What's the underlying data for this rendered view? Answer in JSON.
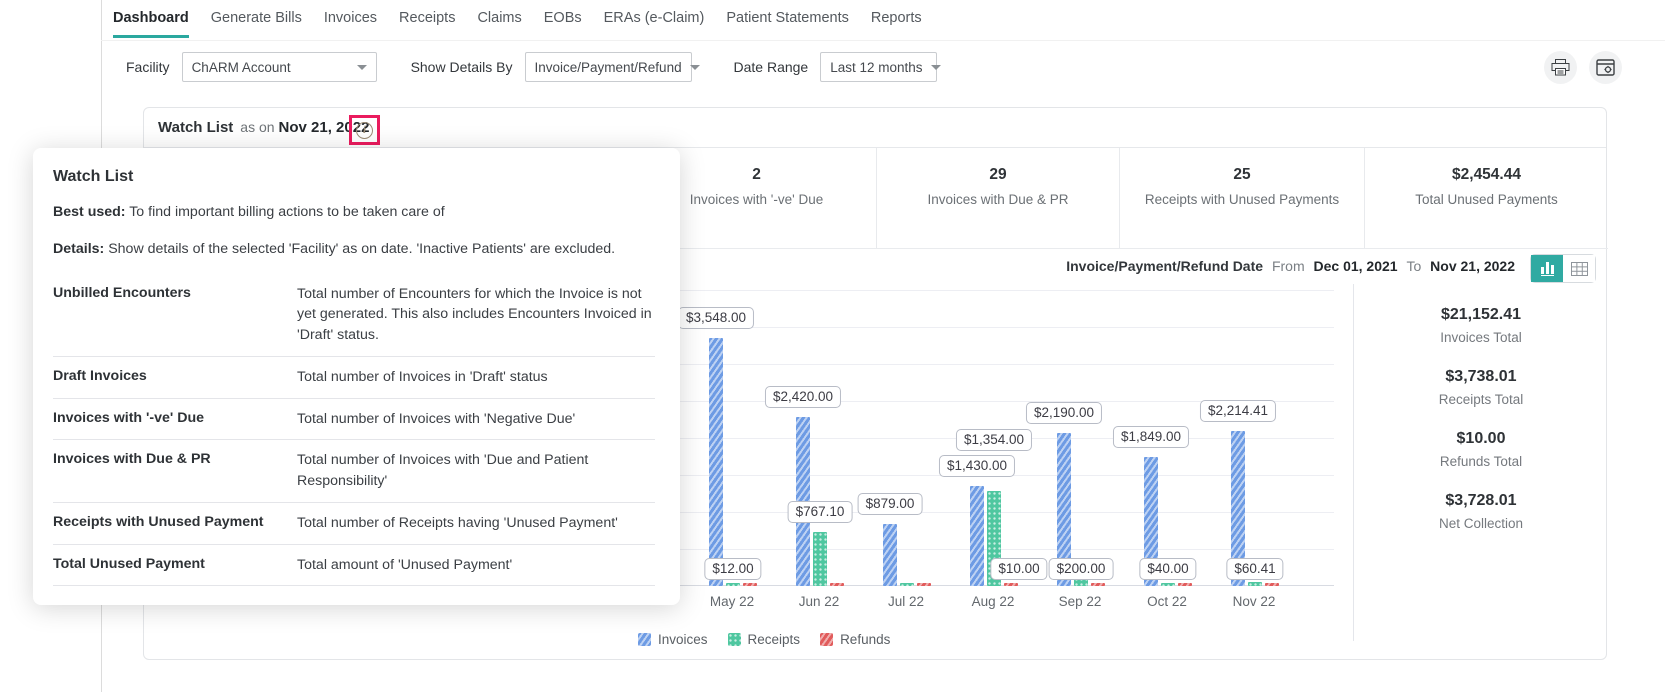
{
  "nav": {
    "tabs": [
      {
        "label": "Dashboard",
        "active": true
      },
      {
        "label": "Generate Bills",
        "active": false
      },
      {
        "label": "Invoices",
        "active": false
      },
      {
        "label": "Receipts",
        "active": false
      },
      {
        "label": "Claims",
        "active": false
      },
      {
        "label": "EOBs",
        "active": false
      },
      {
        "label": "ERAs (e-Claim)",
        "active": false
      },
      {
        "label": "Patient Statements",
        "active": false
      },
      {
        "label": "Reports",
        "active": false
      }
    ]
  },
  "filters": {
    "facility_label": "Facility",
    "facility_value": "ChARM Account",
    "show_details_label": "Show Details By",
    "show_details_value": "Invoice/Payment/Refund",
    "date_range_label": "Date Range",
    "date_range_value": "Last 12 months"
  },
  "icons": {
    "print": "print-icon",
    "widget_settings": "widget-settings-icon",
    "info": "info-icon",
    "chart_view": "bar-chart-icon",
    "table_view": "table-grid-icon"
  },
  "watch_list": {
    "title": "Watch List",
    "as_on_label": "as on",
    "as_on_date": "Nov 21, 2022",
    "stats": [
      {
        "value": "2",
        "label": "Invoices with '-ve' Due"
      },
      {
        "value": "29",
        "label": "Invoices with Due & PR"
      },
      {
        "value": "25",
        "label": "Receipts with Unused Payments"
      },
      {
        "value": "$2,454.44",
        "label": "Total Unused Payments"
      }
    ]
  },
  "popup": {
    "title": "Watch List",
    "best_used_label": "Best used:",
    "best_used_text": "To find important billing actions to be taken care of",
    "details_label": "Details:",
    "details_text": "Show details of the selected 'Facility' as on date. 'Inactive Patients' are excluded.",
    "rows": [
      {
        "term": "Unbilled Encounters",
        "description": "Total number of Encounters for which the Invoice is not yet generated. This also includes Encounters Invoiced in 'Draft' status."
      },
      {
        "term": "Draft Invoices",
        "description": "Total number of Invoices in 'Draft' status"
      },
      {
        "term": "Invoices with '-ve' Due",
        "description": "Total number of Invoices with 'Negative Due'"
      },
      {
        "term": "Invoices with Due & PR",
        "description": "Total number of Invoices with 'Due and Patient Responsibility'"
      },
      {
        "term": "Receipts with Unused Payment",
        "description": "Total number of Receipts having 'Unused Payment'"
      },
      {
        "term": "Total Unused Payment",
        "description": "Total amount of 'Unused Payment'"
      }
    ]
  },
  "chart_header": {
    "date_type": "Invoice/Payment/Refund Date",
    "from_label": "From",
    "from_date": "Dec 01, 2021",
    "to_label": "To",
    "to_date": "Nov 21, 2022",
    "view_toggle": {
      "active": "chart",
      "options": [
        "chart",
        "table"
      ]
    }
  },
  "chart_data": {
    "type": "bar",
    "title": "",
    "xlabel": "",
    "ylabel": "",
    "y_axis_labels_visible": false,
    "gridlines": true,
    "legend_position": "bottom",
    "categories": [
      "May 22",
      "Jun 22",
      "Jul 22",
      "Aug 22",
      "Sep 22",
      "Oct 22",
      "Nov 22"
    ],
    "series": [
      {
        "name": "Invoices",
        "color": "#6d9be4",
        "values": [
          3548.0,
          2420.0,
          879.0,
          1430.0,
          2190.0,
          1849.0,
          2214.41
        ],
        "labels": [
          "$3,548.00",
          "$2,420.00",
          "$879.00",
          "$1,430.00",
          "$2,190.00",
          "$1,849.00",
          "$2,214.41"
        ]
      },
      {
        "name": "Receipts",
        "color": "#4fc7a0",
        "values": [
          12.0,
          767.1,
          0,
          1354.0,
          200.0,
          40.0,
          60.41
        ],
        "labels": [
          "$12.00",
          "$767.10",
          "",
          "$1,354.00",
          "$200.00",
          "$40.00",
          "$60.41"
        ]
      },
      {
        "name": "Refunds",
        "color": "#e15b5b",
        "values": [
          0,
          0,
          0,
          10.0,
          0,
          0,
          0
        ],
        "labels": [
          "",
          "",
          "",
          "$10.00",
          "",
          "",
          ""
        ]
      }
    ]
  },
  "totals": [
    {
      "value": "$21,152.41",
      "label": "Invoices Total"
    },
    {
      "value": "$3,738.01",
      "label": "Receipts Total"
    },
    {
      "value": "$10.00",
      "label": "Refunds Total"
    },
    {
      "value": "$3,728.01",
      "label": "Net Collection"
    }
  ],
  "colors": {
    "accent_teal": "#2aa89f",
    "invoices": "#6d9be4",
    "receipts": "#4fc7a0",
    "refunds": "#e15b5b",
    "highlight_box": "#ea1b5e"
  }
}
